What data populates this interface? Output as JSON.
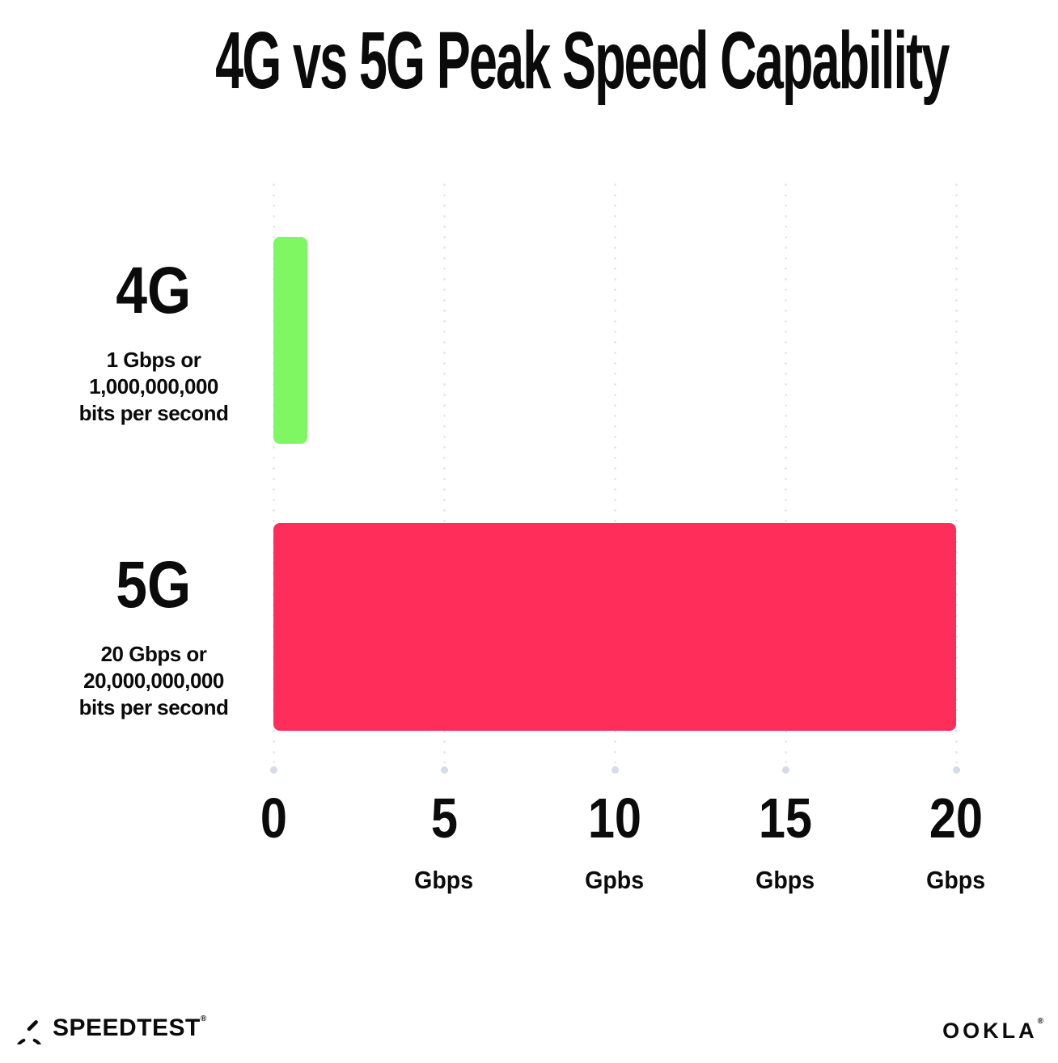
{
  "title": "4G vs 5G Peak Speed Capability",
  "chart_data": {
    "type": "bar",
    "orientation": "horizontal",
    "title": "4G vs 5G Peak Speed Capability",
    "categories": [
      "4G",
      "5G"
    ],
    "values": [
      1,
      20
    ],
    "xlabel": "Gbps",
    "xlim": [
      0,
      20
    ],
    "grid": "dotted-vertical-gridlines",
    "legend": "none",
    "bars": [
      {
        "label": "4G",
        "sublabel_line1": "1 Gbps or",
        "sublabel_line2": "1,000,000,000",
        "sublabel_line3": "bits per second",
        "value": 1,
        "color": "#7ff763"
      },
      {
        "label": "5G",
        "sublabel_line1": "20 Gbps or",
        "sublabel_line2": "20,000,000,000",
        "sublabel_line3": "bits per second",
        "value": 20,
        "color": "#ff2d5a"
      }
    ],
    "ticks": [
      {
        "value": "0",
        "unit": ""
      },
      {
        "value": "5",
        "unit": "Gbps"
      },
      {
        "value": "10",
        "unit": "Gpbs"
      },
      {
        "value": "15",
        "unit": "Gbps"
      },
      {
        "value": "20",
        "unit": "Gbps"
      }
    ]
  },
  "colors": {
    "bar_4g": "#7ff763",
    "bar_5g": "#ff2d5a",
    "gridline_dot": "#e3e4ee",
    "axis_end_dot": "#d7dae8",
    "text": "#0b0b0b",
    "background": "#ffffff"
  },
  "footer": {
    "speedtest_label": "SPEEDTEST",
    "speedtest_mark": "®",
    "ookla_label": "OOKLA",
    "ookla_mark": "®"
  }
}
